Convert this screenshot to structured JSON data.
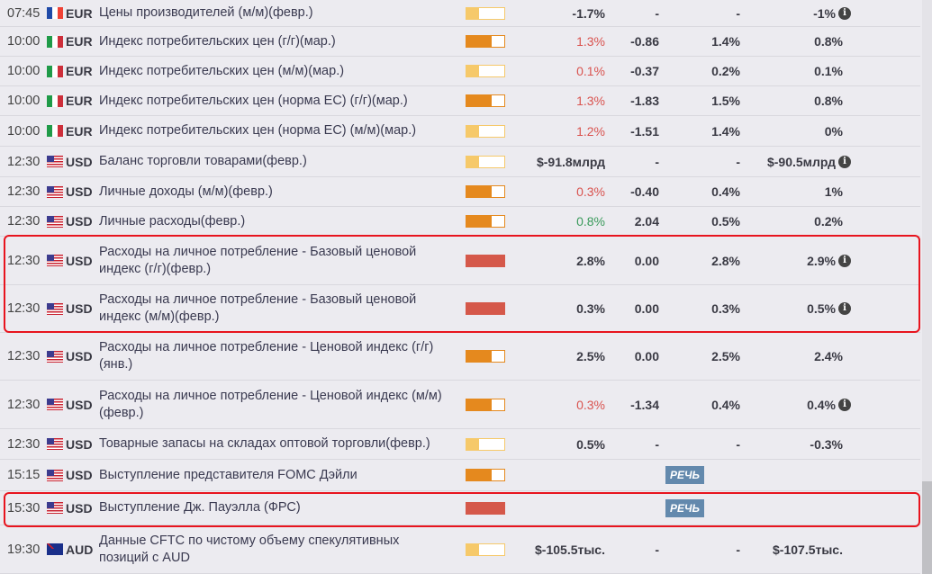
{
  "colors": {
    "low": "#f6c96a",
    "medium": "#e5891e",
    "high": "#d5584a",
    "red": "#d9534f",
    "green": "#3a9a5b",
    "speech": "#6389ad"
  },
  "speech_label": "РЕЧЬ",
  "rows": [
    {
      "time": "07:45",
      "flag": "fr",
      "currency": "EUR",
      "event": "Цены производителей (м/м)(февр.)",
      "impact": "low",
      "actual": "-1.7%",
      "actual_color": "",
      "deviation": "-",
      "consensus": "-",
      "previous": "-1%",
      "info": true,
      "h": 30
    },
    {
      "time": "10:00",
      "flag": "it",
      "currency": "EUR",
      "event": "Индекс потребительских цен (г/г)(мар.)",
      "impact": "medium",
      "actual": "1.3%",
      "actual_color": "red",
      "deviation": "-0.86",
      "consensus": "1.4%",
      "previous": "0.8%",
      "info": false,
      "h": 33
    },
    {
      "time": "10:00",
      "flag": "it",
      "currency": "EUR",
      "event": "Индекс потребительских цен (м/м)(мар.)",
      "impact": "low",
      "actual": "0.1%",
      "actual_color": "red",
      "deviation": "-0.37",
      "consensus": "0.2%",
      "previous": "0.1%",
      "info": false,
      "h": 33
    },
    {
      "time": "10:00",
      "flag": "it",
      "currency": "EUR",
      "event": "Индекс потребительских цен (норма ЕС) (г/г)(мар.)",
      "impact": "medium",
      "actual": "1.3%",
      "actual_color": "red",
      "deviation": "-1.83",
      "consensus": "1.5%",
      "previous": "0.8%",
      "info": false,
      "h": 33
    },
    {
      "time": "10:00",
      "flag": "it",
      "currency": "EUR",
      "event": "Индекс потребительских цен (норма ЕС) (м/м)(мар.)",
      "impact": "low",
      "actual": "1.2%",
      "actual_color": "red",
      "deviation": "-1.51",
      "consensus": "1.4%",
      "previous": "0%",
      "info": false,
      "h": 34
    },
    {
      "time": "12:30",
      "flag": "us",
      "currency": "USD",
      "event": "Баланс торговли товарами(февр.)",
      "impact": "low",
      "actual": "$-91.8млрд",
      "actual_color": "",
      "deviation": "-",
      "consensus": "-",
      "previous": "$-90.5млрд",
      "info": true,
      "h": 34
    },
    {
      "time": "12:30",
      "flag": "us",
      "currency": "USD",
      "event": "Личные доходы (м/м)(февр.)",
      "impact": "medium",
      "actual": "0.3%",
      "actual_color": "red",
      "deviation": "-0.40",
      "consensus": "0.4%",
      "previous": "1%",
      "info": false,
      "h": 33
    },
    {
      "time": "12:30",
      "flag": "us",
      "currency": "USD",
      "event": "Личные расходы(февр.)",
      "impact": "medium",
      "actual": "0.8%",
      "actual_color": "green",
      "deviation": "2.04",
      "consensus": "0.5%",
      "previous": "0.2%",
      "info": false,
      "h": 33
    },
    {
      "time": "12:30",
      "flag": "us",
      "currency": "USD",
      "event": "Расходы на личное потребление - Базовый ценовой индекс (г/г)(февр.)",
      "impact": "high",
      "actual": "2.8%",
      "actual_color": "",
      "deviation": "0.00",
      "consensus": "2.8%",
      "previous": "2.9%",
      "info": true,
      "h": 54
    },
    {
      "time": "12:30",
      "flag": "us",
      "currency": "USD",
      "event": "Расходы на личное потребление - Базовый ценовой индекс (м/м)(февр.)",
      "impact": "high",
      "actual": "0.3%",
      "actual_color": "",
      "deviation": "0.00",
      "consensus": "0.3%",
      "previous": "0.5%",
      "info": true,
      "h": 53
    },
    {
      "time": "12:30",
      "flag": "us",
      "currency": "USD",
      "event": "Расходы на личное потребление - Ценовой индекс (г/г) (янв.)",
      "impact": "medium",
      "actual": "2.5%",
      "actual_color": "",
      "deviation": "0.00",
      "consensus": "2.5%",
      "previous": "2.4%",
      "info": false,
      "h": 53
    },
    {
      "time": "12:30",
      "flag": "us",
      "currency": "USD",
      "event": "Расходы на личное потребление - Ценовой индекс (м/м)(февр.)",
      "impact": "medium",
      "actual": "0.3%",
      "actual_color": "red",
      "deviation": "-1.34",
      "consensus": "0.4%",
      "previous": "0.4%",
      "info": true,
      "h": 54
    },
    {
      "time": "12:30",
      "flag": "us",
      "currency": "USD",
      "event": "Товарные запасы на складах оптовой торговли(февр.)",
      "impact": "low",
      "actual": "0.5%",
      "actual_color": "",
      "deviation": "-",
      "consensus": "-",
      "previous": "-0.3%",
      "info": false,
      "h": 34
    },
    {
      "time": "15:15",
      "flag": "us",
      "currency": "USD",
      "event": "Выступление представителя FOMC Дэйли",
      "impact": "medium",
      "speech": true,
      "h": 35
    },
    {
      "time": "15:30",
      "flag": "us",
      "currency": "USD",
      "event": "Выступление Дж. Пауэлла (ФРС)",
      "impact": "high",
      "speech": true,
      "h": 38
    },
    {
      "time": "19:30",
      "flag": "au",
      "currency": "AUD",
      "event": "Данные CFTC по чистому объему спекулятивных позиций с AUD",
      "impact": "low",
      "actual": "$-105.5тыс.",
      "actual_color": "",
      "deviation": "-",
      "consensus": "-",
      "previous": "$-107.5тыс.",
      "info": false,
      "h": 54
    }
  ]
}
